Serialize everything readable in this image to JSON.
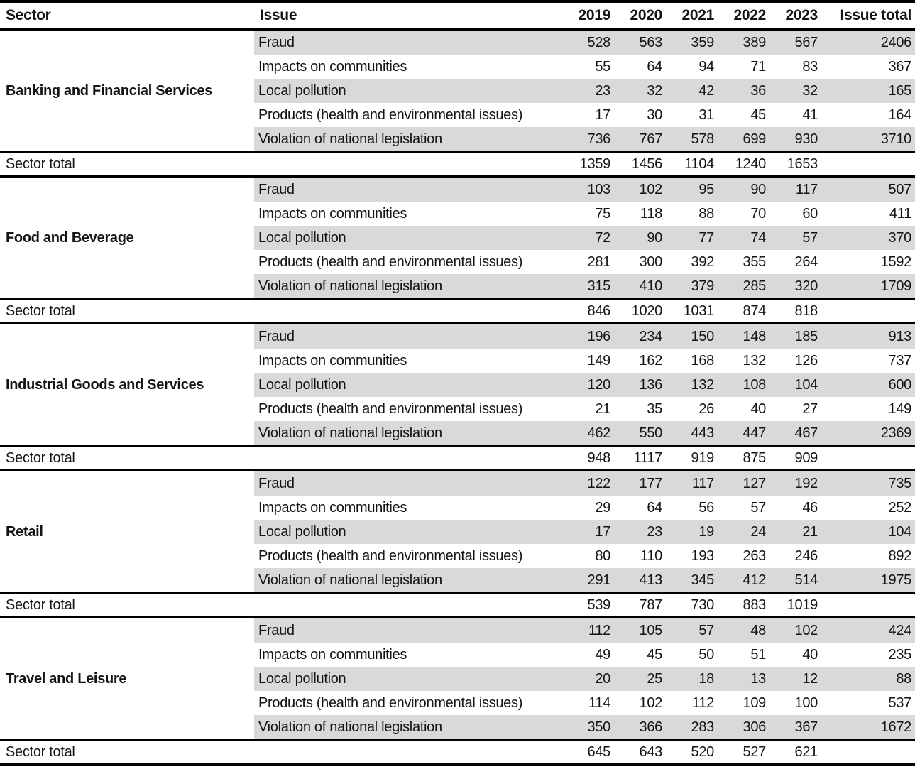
{
  "colors": {
    "row_shade": "#d9d9d9",
    "rule": "#000000",
    "text": "#141414",
    "background": "#ffffff"
  },
  "chart_data": {
    "type": "table",
    "columns": [
      "Sector",
      "Issue",
      "2019",
      "2020",
      "2021",
      "2022",
      "2023",
      "Issue total"
    ],
    "sector_total_label": "Sector total",
    "sections": [
      {
        "sector": "Banking and Financial Services",
        "rows": [
          {
            "issue": "Fraud",
            "values": [
              528,
              563,
              359,
              389,
              567
            ],
            "issue_total": 2406
          },
          {
            "issue": "Impacts on communities",
            "values": [
              55,
              64,
              94,
              71,
              83
            ],
            "issue_total": 367
          },
          {
            "issue": "Local pollution",
            "values": [
              23,
              32,
              42,
              36,
              32
            ],
            "issue_total": 165
          },
          {
            "issue": "Products (health and environmental issues)",
            "values": [
              17,
              30,
              31,
              45,
              41
            ],
            "issue_total": 164
          },
          {
            "issue": "Violation of national legislation",
            "values": [
              736,
              767,
              578,
              699,
              930
            ],
            "issue_total": 3710
          }
        ],
        "sector_total_values": [
          1359,
          1456,
          1104,
          1240,
          1653
        ]
      },
      {
        "sector": "Food and Beverage",
        "rows": [
          {
            "issue": "Fraud",
            "values": [
              103,
              102,
              95,
              90,
              117
            ],
            "issue_total": 507
          },
          {
            "issue": "Impacts on communities",
            "values": [
              75,
              118,
              88,
              70,
              60
            ],
            "issue_total": 411
          },
          {
            "issue": "Local pollution",
            "values": [
              72,
              90,
              77,
              74,
              57
            ],
            "issue_total": 370
          },
          {
            "issue": "Products (health and environmental issues)",
            "values": [
              281,
              300,
              392,
              355,
              264
            ],
            "issue_total": 1592
          },
          {
            "issue": "Violation of national legislation",
            "values": [
              315,
              410,
              379,
              285,
              320
            ],
            "issue_total": 1709
          }
        ],
        "sector_total_values": [
          846,
          1020,
          1031,
          874,
          818
        ]
      },
      {
        "sector": "Industrial Goods and Services",
        "rows": [
          {
            "issue": "Fraud",
            "values": [
              196,
              234,
              150,
              148,
              185
            ],
            "issue_total": 913
          },
          {
            "issue": "Impacts on communities",
            "values": [
              149,
              162,
              168,
              132,
              126
            ],
            "issue_total": 737
          },
          {
            "issue": "Local pollution",
            "values": [
              120,
              136,
              132,
              108,
              104
            ],
            "issue_total": 600
          },
          {
            "issue": "Products (health and environmental issues)",
            "values": [
              21,
              35,
              26,
              40,
              27
            ],
            "issue_total": 149
          },
          {
            "issue": "Violation of national legislation",
            "values": [
              462,
              550,
              443,
              447,
              467
            ],
            "issue_total": 2369
          }
        ],
        "sector_total_values": [
          948,
          1117,
          919,
          875,
          909
        ]
      },
      {
        "sector": "Retail",
        "rows": [
          {
            "issue": "Fraud",
            "values": [
              122,
              177,
              117,
              127,
              192
            ],
            "issue_total": 735
          },
          {
            "issue": "Impacts on communities",
            "values": [
              29,
              64,
              56,
              57,
              46
            ],
            "issue_total": 252
          },
          {
            "issue": "Local pollution",
            "values": [
              17,
              23,
              19,
              24,
              21
            ],
            "issue_total": 104
          },
          {
            "issue": "Products (health and environmental issues)",
            "values": [
              80,
              110,
              193,
              263,
              246
            ],
            "issue_total": 892
          },
          {
            "issue": "Violation of national legislation",
            "values": [
              291,
              413,
              345,
              412,
              514
            ],
            "issue_total": 1975
          }
        ],
        "sector_total_values": [
          539,
          787,
          730,
          883,
          1019
        ]
      },
      {
        "sector": "Travel and Leisure",
        "rows": [
          {
            "issue": "Fraud",
            "values": [
              112,
              105,
              57,
              48,
              102
            ],
            "issue_total": 424
          },
          {
            "issue": "Impacts on communities",
            "values": [
              49,
              45,
              50,
              51,
              40
            ],
            "issue_total": 235
          },
          {
            "issue": "Local pollution",
            "values": [
              20,
              25,
              18,
              13,
              12
            ],
            "issue_total": 88
          },
          {
            "issue": "Products (health and environmental issues)",
            "values": [
              114,
              102,
              112,
              109,
              100
            ],
            "issue_total": 537
          },
          {
            "issue": "Violation of national legislation",
            "values": [
              350,
              366,
              283,
              306,
              367
            ],
            "issue_total": 1672
          }
        ],
        "sector_total_values": [
          645,
          643,
          520,
          527,
          621
        ]
      }
    ]
  }
}
